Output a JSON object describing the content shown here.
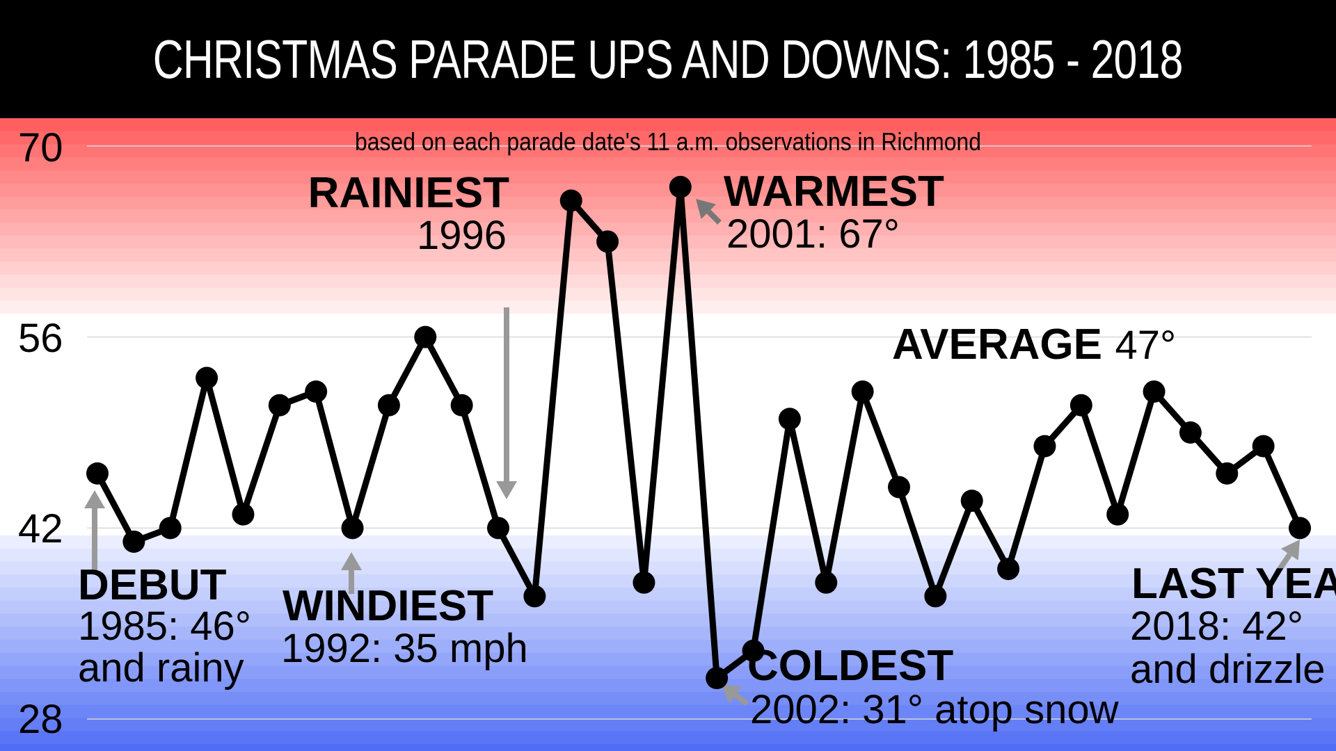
{
  "title": "CHRISTMAS PARADE UPS AND DOWNS: 1985 - 2018",
  "colors": {
    "line": "#000000",
    "arrow": "#999999",
    "arrow_dark": "#777777",
    "warm": "#ff5a5a",
    "cool": "#5570f5",
    "grid": "#d9d9d9"
  },
  "chart_data": {
    "type": "line",
    "title": "CHRISTMAS PARADE UPS AND DOWNS: 1985 - 2018",
    "subtitle": "based on each parade date's 11 a.m. observations in Richmond",
    "xlabel": "",
    "ylabel": "",
    "y_ticks": [
      "70",
      "56",
      "42",
      "28"
    ],
    "ylim": [
      28,
      70
    ],
    "xlim": [
      1985,
      2018
    ],
    "grid": true,
    "background": "horizontal color bands, red at top to white to blue at bottom",
    "x": [
      1985,
      1986,
      1987,
      1988,
      1989,
      1990,
      1991,
      1992,
      1993,
      1994,
      1995,
      1996,
      1997,
      1998,
      1999,
      2000,
      2001,
      2002,
      2003,
      2004,
      2005,
      2006,
      2007,
      2008,
      2009,
      2010,
      2011,
      2012,
      2013,
      2014,
      2015,
      2016,
      2017,
      2018
    ],
    "series": [
      {
        "values": [
          46,
          41,
          42,
          53,
          43,
          51,
          52,
          42,
          51,
          56,
          51,
          42,
          37,
          66,
          63,
          38,
          67,
          31,
          33,
          50,
          38,
          52,
          45,
          37,
          44,
          39,
          48,
          51,
          43,
          52,
          49,
          46,
          48,
          42
        ]
      }
    ]
  },
  "annotations": [
    {
      "id": "debut",
      "head": "DEBUT",
      "lines": [
        "1985: 46°",
        "and rainy"
      ]
    },
    {
      "id": "windiest",
      "head": "WINDIEST",
      "lines": [
        "1992: 35 mph"
      ]
    },
    {
      "id": "rainiest",
      "head": "RAINIEST",
      "lines": [
        "1996"
      ]
    },
    {
      "id": "warmest",
      "head": "WARMEST",
      "lines": [
        "2001: 67°"
      ]
    },
    {
      "id": "coldest",
      "head": "COLDEST",
      "lines": [
        "2002: 31° atop snow"
      ]
    },
    {
      "id": "average",
      "head": "AVERAGE",
      "value": "47°"
    },
    {
      "id": "last-year",
      "head": "LAST YEAR",
      "lines": [
        "2018: 42°",
        "and drizzle"
      ]
    }
  ]
}
